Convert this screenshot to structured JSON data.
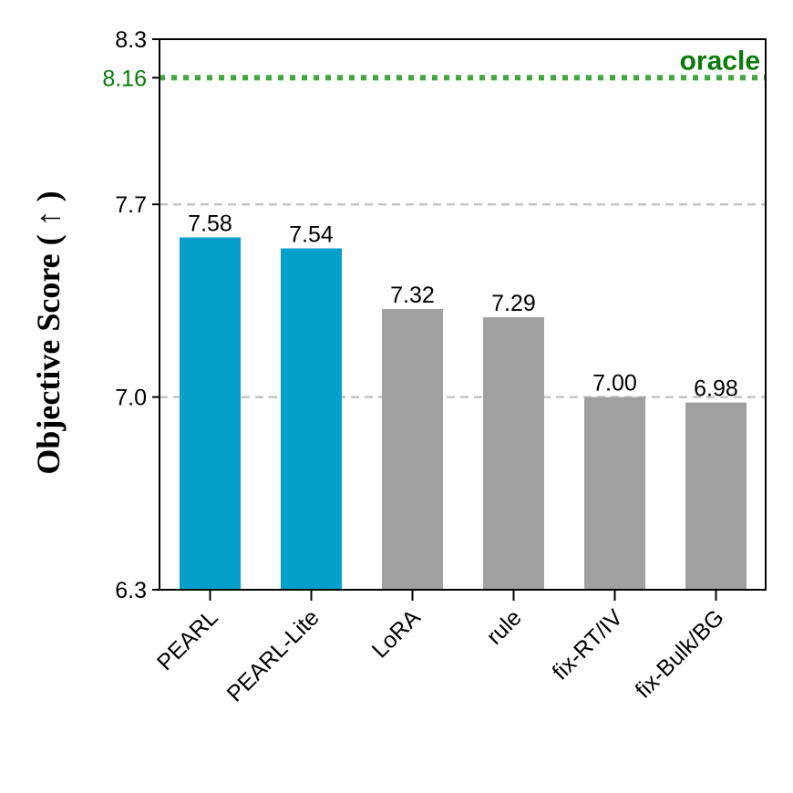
{
  "chart_data": {
    "type": "bar",
    "categories": [
      "PEARL",
      "PEARL-Lite",
      "LoRA",
      "rule",
      "fix-RT/IV",
      "fix-Bulk/BG"
    ],
    "values": [
      7.58,
      7.54,
      7.32,
      7.29,
      7.0,
      6.98
    ],
    "value_labels": [
      "7.58",
      "7.54",
      "7.32",
      "7.29",
      "7.00",
      "6.98"
    ],
    "bar_colors": [
      "#049fca",
      "#049fca",
      "#a0a0a0",
      "#a0a0a0",
      "#a0a0a0",
      "#a0a0a0"
    ],
    "ylabel": "Objective Score ( ↑ )",
    "xlabel": "",
    "ylim": [
      6.3,
      8.3
    ],
    "yticks": [
      {
        "value": 6.3,
        "label": "6.3"
      },
      {
        "value": 7.0,
        "label": "7.0"
      },
      {
        "value": 7.7,
        "label": "7.7"
      },
      {
        "value": 8.3,
        "label": "8.3"
      }
    ],
    "grid_lines": [
      7.0,
      7.7
    ],
    "reference_line": {
      "value": 8.16,
      "label": "oracle",
      "tick_label": "8.16",
      "color": "#43a640",
      "label_color": "#0a7a0a",
      "style": "dotted"
    }
  }
}
